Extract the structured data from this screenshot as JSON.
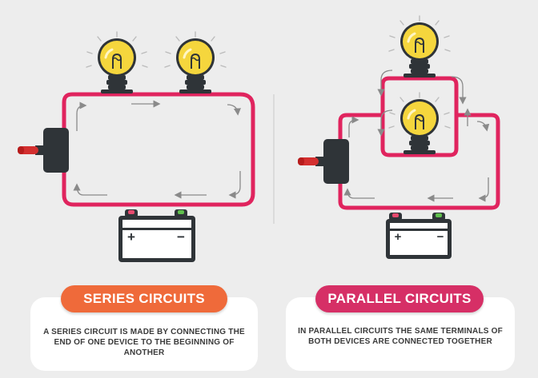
{
  "series": {
    "title": "SERIES CIRCUITS",
    "description": "A SERIES CIRCUIT IS MADE BY CONNECTING THE END OF ONE DEVICE TO THE BEGINNING OF ANOTHER",
    "battery_plus": "+",
    "battery_minus": "−"
  },
  "parallel": {
    "title": "PARALLEL CIRCUITS",
    "description": "IN PARALLEL CIRCUITS THE SAME TERMINALS OF BOTH DEVICES ARE CONNECTED TOGETHER",
    "battery_plus": "+",
    "battery_minus": "−"
  },
  "colors": {
    "wire": "#e0245e",
    "series_pill": "#ef6a3a",
    "parallel_pill": "#d62f66",
    "bulb": "#f5d63d",
    "base": "#2f3438",
    "switch_lever": "#d32f2f",
    "terminal_plus": "#e64a6e",
    "terminal_minus": "#5fbf4d",
    "arrow": "#8a8a8a"
  },
  "icons": [
    "light-bulb-icon",
    "battery-icon",
    "toggle-switch-icon",
    "current-arrow-icon"
  ]
}
